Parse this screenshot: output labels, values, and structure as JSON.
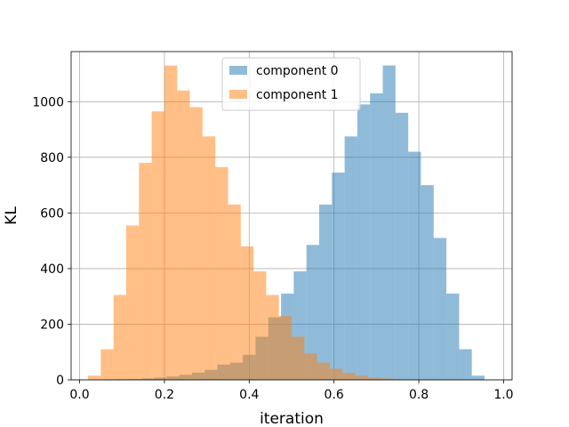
{
  "chart_data": {
    "type": "histogram",
    "xlabel": "iteration",
    "ylabel": "KL",
    "xlim": [
      -0.02,
      1.02
    ],
    "ylim": [
      0,
      1180
    ],
    "xticks": [
      0.0,
      0.2,
      0.4,
      0.6,
      0.8,
      1.0
    ],
    "xtick_labels": [
      "0.0",
      "0.2",
      "0.4",
      "0.6",
      "0.8",
      "1.0"
    ],
    "yticks": [
      0,
      200,
      400,
      600,
      800,
      1000
    ],
    "ytick_labels": [
      "0",
      "200",
      "400",
      "600",
      "800",
      "1000"
    ],
    "grid": true,
    "legend_position": "top-center",
    "series": [
      {
        "name": "component 0",
        "color": "#1f77b4",
        "opacity": 0.5,
        "bin_start": 0.025,
        "bin_width": 0.03,
        "counts": [
          0,
          1,
          2,
          3,
          5,
          8,
          12,
          18,
          26,
          36,
          55,
          62,
          90,
          155,
          225,
          310,
          390,
          485,
          630,
          745,
          875,
          990,
          1030,
          1130,
          960,
          820,
          700,
          510,
          310,
          110,
          15
        ]
      },
      {
        "name": "component 1",
        "color": "#ff7f0e",
        "opacity": 0.5,
        "bin_start": 0.02,
        "bin_width": 0.03,
        "counts": [
          15,
          110,
          305,
          555,
          780,
          965,
          1130,
          1040,
          980,
          875,
          765,
          630,
          480,
          390,
          305,
          230,
          155,
          95,
          62,
          40,
          25,
          15,
          8,
          5,
          3,
          1
        ]
      }
    ]
  }
}
